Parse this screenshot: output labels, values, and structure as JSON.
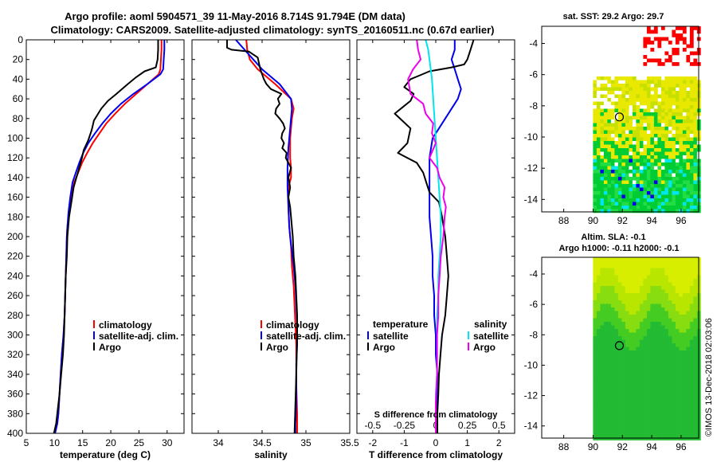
{
  "title": {
    "line1": "Argo profile: aoml 5904571_39 11-May-2016 8.714S 91.794E (DM data)",
    "line2": "Climatology: CARS2009. Satellite-adjusted climatology: synTS_20160511.nc (0.67d earlier)"
  },
  "credit": "©IMOS 13-Dec-2018 02:03:06",
  "colors": {
    "climatology": "#ff0000",
    "satellite": "#0000ee",
    "argo": "#000000",
    "sat_salinity": "#00e5ee",
    "argo_salinity": "#ee00ee"
  },
  "depth_ticks": [
    "0",
    "20",
    "40",
    "60",
    "80",
    "100",
    "120",
    "140",
    "160",
    "180",
    "200",
    "220",
    "240",
    "260",
    "280",
    "300",
    "320",
    "340",
    "360",
    "380",
    "400"
  ],
  "chart_data": [
    {
      "type": "line",
      "name": "temperature-panel",
      "xlabel": "temperature (deg C)",
      "ylabel": "depth",
      "xlim": [
        5,
        33
      ],
      "ylim": [
        400,
        0
      ],
      "xticks": [
        5,
        10,
        15,
        20,
        25,
        30
      ],
      "xtick_labels": [
        "5",
        "10",
        "15",
        "20",
        "25",
        "30"
      ],
      "legend": {
        "position": "lower-right",
        "entries": [
          "climatology",
          "satellite-adj. clim.",
          "Argo"
        ]
      },
      "series": [
        {
          "name": "climatology",
          "color": "#ff0000",
          "x": [
            29.0,
            29.0,
            28.9,
            28.8,
            28.5,
            26.5,
            24.5,
            22.5,
            20.8,
            19.2,
            18.0,
            16.8,
            15.8,
            14.9,
            14.2,
            13.5,
            13.0,
            12.6,
            12.3,
            12.2,
            12.1,
            12.0,
            11.9,
            11.8,
            11.6,
            11.3,
            11.1,
            10.9,
            10.7,
            10.5,
            10.3,
            10.1
          ],
          "depth": [
            0,
            10,
            20,
            30,
            35,
            45,
            55,
            65,
            75,
            85,
            95,
            105,
            115,
            125,
            135,
            145,
            160,
            175,
            190,
            200,
            220,
            240,
            260,
            280,
            300,
            320,
            340,
            360,
            380,
            390,
            395,
            400
          ]
        },
        {
          "name": "satellite",
          "color": "#0000ee",
          "x": [
            29.5,
            29.5,
            29.4,
            29.3,
            28.8,
            26.5,
            24.0,
            21.8,
            20.0,
            18.5,
            17.2,
            16.0,
            15.1,
            14.4,
            13.8,
            13.2,
            12.8,
            12.5,
            12.3,
            12.2,
            12.1,
            12.0,
            11.9,
            11.8,
            11.6,
            11.3,
            11.1,
            10.9,
            10.7,
            10.5,
            10.3,
            10.1
          ],
          "depth": [
            0,
            10,
            20,
            30,
            35,
            45,
            55,
            65,
            75,
            85,
            95,
            105,
            115,
            125,
            135,
            145,
            160,
            175,
            190,
            200,
            220,
            240,
            260,
            280,
            300,
            320,
            340,
            360,
            380,
            390,
            395,
            400
          ]
        },
        {
          "name": "Argo",
          "color": "#000000",
          "x": [
            28.4,
            28.4,
            28.3,
            28.0,
            26.0,
            24.5,
            23.0,
            21.0,
            19.5,
            18.3,
            17.0,
            16.6,
            16.0,
            15.2,
            14.8,
            14.3,
            13.9,
            13.4,
            13.0,
            12.6,
            12.3,
            12.2,
            12.0,
            11.9,
            11.8,
            11.7,
            11.5,
            11.2,
            10.9,
            10.6,
            10.3,
            10.1,
            9.9
          ],
          "depth": [
            0,
            10,
            20,
            28,
            32,
            38,
            45,
            55,
            62,
            70,
            82,
            92,
            102,
            112,
            122,
            132,
            140,
            150,
            165,
            180,
            200,
            220,
            240,
            260,
            280,
            300,
            320,
            340,
            360,
            375,
            390,
            395,
            400
          ]
        }
      ]
    },
    {
      "type": "line",
      "name": "salinity-panel",
      "xlabel": "salinity",
      "ylabel": "depth",
      "xlim": [
        33.7,
        35.5
      ],
      "ylim": [
        400,
        0
      ],
      "xticks": [
        34,
        34.5,
        35,
        35.5
      ],
      "xtick_labels": [
        "34",
        "34.5",
        "35",
        "35.5"
      ],
      "legend": {
        "position": "lower-right",
        "entries": [
          "climatology",
          "satellite-adj. clim.",
          "Argo"
        ]
      },
      "series": [
        {
          "name": "climatology",
          "color": "#ff0000",
          "x": [
            34.32,
            34.33,
            34.36,
            34.45,
            34.65,
            34.83,
            34.86,
            34.84,
            34.82,
            34.82,
            34.83,
            34.83,
            34.8,
            34.8,
            34.8,
            34.81,
            34.83,
            34.84,
            34.86,
            34.87,
            34.88,
            34.89,
            34.89,
            34.89,
            34.9,
            34.9
          ],
          "depth": [
            0,
            10,
            20,
            30,
            45,
            60,
            70,
            80,
            100,
            120,
            130,
            140,
            150,
            160,
            170,
            190,
            210,
            230,
            250,
            270,
            290,
            310,
            330,
            350,
            380,
            400
          ]
        },
        {
          "name": "satellite",
          "color": "#0000ee",
          "x": [
            34.2,
            34.3,
            34.4,
            34.5,
            34.7,
            34.83,
            34.84,
            34.82,
            34.8,
            34.79,
            34.79,
            34.8,
            34.81,
            34.82,
            34.84,
            34.86,
            34.88,
            34.89,
            34.9,
            34.9,
            34.89,
            34.89,
            34.89,
            34.88,
            34.88
          ],
          "depth": [
            0,
            10,
            20,
            30,
            45,
            60,
            70,
            90,
            110,
            130,
            150,
            170,
            190,
            200,
            215,
            230,
            250,
            270,
            290,
            310,
            330,
            350,
            370,
            390,
            400
          ]
        },
        {
          "name": "Argo",
          "color": "#000000",
          "x": [
            34.1,
            34.1,
            34.15,
            34.35,
            34.45,
            34.48,
            34.52,
            34.55,
            34.6,
            34.72,
            34.68,
            34.7,
            34.66,
            34.65,
            34.7,
            34.74,
            34.76,
            34.73,
            34.72,
            34.75,
            34.73,
            34.78,
            34.77,
            34.8,
            34.83,
            34.8,
            34.82,
            34.8,
            34.82,
            34.83,
            34.85,
            34.86,
            34.88,
            34.89,
            34.9,
            34.9,
            34.89,
            34.88,
            34.87
          ],
          "depth": [
            0,
            8,
            10,
            12,
            18,
            30,
            40,
            45,
            50,
            55,
            60,
            65,
            70,
            75,
            80,
            85,
            90,
            95,
            100,
            105,
            110,
            115,
            120,
            125,
            130,
            140,
            150,
            160,
            170,
            180,
            200,
            220,
            240,
            260,
            280,
            300,
            340,
            370,
            400
          ]
        }
      ]
    },
    {
      "type": "line",
      "name": "difference-panel",
      "xlabel": "T difference from climatology",
      "xlabel_top": "S difference from climatology",
      "ylabel": "depth",
      "xlim": [
        -2.5,
        2.5
      ],
      "ylim": [
        400,
        0
      ],
      "xticks": [
        -2,
        -1,
        0,
        1,
        2
      ],
      "xtick_labels": [
        "-2",
        "-1",
        "0",
        "1",
        "2"
      ],
      "s_xticks": [
        -0.5,
        -0.25,
        0,
        0.25,
        0.5
      ],
      "s_xtick_labels": [
        "-0.5",
        "-0.25",
        "0",
        "0.25",
        "0.5"
      ],
      "s_scale": 0.25,
      "legend": {
        "position": "lower",
        "temperature_label": "temperature",
        "salinity_label": "salinity",
        "entries": [
          "satellite",
          "Argo"
        ]
      },
      "series": [
        {
          "name": "temperature satellite",
          "color": "#0000ee",
          "axis": "T",
          "x": [
            0.6,
            0.6,
            0.5,
            0.6,
            0.7,
            0.8,
            0.7,
            0.5,
            0.3,
            0.1,
            -0.1,
            -0.2,
            -0.2,
            -0.2,
            -0.2,
            -0.15,
            -0.1,
            -0.1,
            -0.05,
            -0.05,
            0,
            0,
            0.05,
            0.05,
            0.05,
            0.05
          ],
          "depth": [
            0,
            10,
            20,
            30,
            40,
            50,
            60,
            70,
            80,
            90,
            100,
            120,
            140,
            160,
            180,
            200,
            220,
            240,
            260,
            280,
            300,
            320,
            340,
            360,
            380,
            400
          ]
        },
        {
          "name": "temperature Argo",
          "color": "#000000",
          "axis": "T",
          "x": [
            1.2,
            1.1,
            1.0,
            0.9,
            0.5,
            -0.2,
            -0.5,
            -0.8,
            -1.0,
            -0.7,
            -0.8,
            -1.3,
            -0.8,
            -0.9,
            -1.2,
            -0.6,
            -0.4,
            -0.3,
            -0.2,
            0.1,
            0.2,
            0.3,
            0.35,
            0.4,
            0.35,
            0.3,
            0.2,
            0.15,
            0.1,
            0.08,
            0.05,
            0.05
          ],
          "depth": [
            0,
            10,
            20,
            25,
            28,
            32,
            36,
            40,
            48,
            55,
            62,
            75,
            90,
            105,
            115,
            125,
            135,
            145,
            155,
            165,
            180,
            200,
            220,
            240,
            260,
            280,
            300,
            320,
            340,
            360,
            380,
            400
          ]
        },
        {
          "name": "salinity satellite",
          "color": "#00e5ee",
          "axis": "S",
          "x": [
            -0.08,
            -0.06,
            -0.05,
            -0.04,
            -0.03,
            -0.02,
            -0.01,
            0,
            0.01,
            0.02,
            0.03,
            0.04,
            0.04,
            0.03,
            0.02,
            0.02,
            0.01,
            0.01,
            0.01,
            0.01,
            0,
            0,
            0
          ],
          "depth": [
            0,
            10,
            20,
            30,
            40,
            60,
            80,
            100,
            120,
            140,
            160,
            180,
            200,
            220,
            240,
            260,
            280,
            300,
            320,
            340,
            360,
            380,
            400
          ]
        },
        {
          "name": "salinity Argo",
          "color": "#ee00ee",
          "axis": "S",
          "x": [
            -0.15,
            -0.14,
            -0.12,
            -0.18,
            -0.22,
            -0.2,
            -0.1,
            -0.08,
            -0.02,
            -0.03,
            0,
            -0.05,
            0.01,
            0.03,
            0.07,
            0.06,
            0.08,
            0.07,
            0.06,
            0.04,
            0.03,
            0.02,
            0.02,
            0.01,
            0.01,
            0,
            0
          ],
          "depth": [
            0,
            10,
            20,
            30,
            40,
            55,
            65,
            75,
            85,
            95,
            105,
            120,
            130,
            140,
            150,
            160,
            170,
            180,
            200,
            220,
            240,
            260,
            280,
            300,
            340,
            370,
            400
          ]
        }
      ]
    },
    {
      "type": "heatmap",
      "name": "sst-map",
      "title": "sat. SST: 29.2 Argo: 29.7",
      "xlabel": "longitude",
      "ylabel": "latitude",
      "xlim": [
        86.5,
        97.2
      ],
      "ylim": [
        -14.8,
        -2.9
      ],
      "xticks": [
        88,
        90,
        92,
        94,
        96
      ],
      "xtick_labels": [
        "88",
        "90",
        "92",
        "94",
        "96"
      ],
      "yticks": [
        -4,
        -6,
        -8,
        -10,
        -12,
        -14
      ],
      "ytick_labels": [
        "-4",
        "-6",
        "-8",
        "-10",
        "-12",
        "-14"
      ],
      "marker": {
        "lon": 91.794,
        "lat": -8.714
      }
    },
    {
      "type": "heatmap",
      "name": "sla-map",
      "title": "Altim. SLA: -0.1",
      "subtitle": "Argo h1000: -0.11 h2000: -0.1",
      "xlabel": "longitude",
      "ylabel": "latitude",
      "xlim": [
        86.5,
        97.2
      ],
      "ylim": [
        -14.8,
        -2.9
      ],
      "xticks": [
        88,
        90,
        92,
        94,
        96
      ],
      "xtick_labels": [
        "88",
        "90",
        "92",
        "94",
        "96"
      ],
      "yticks": [
        -4,
        -6,
        -8,
        -10,
        -12,
        -14
      ],
      "ytick_labels": [
        "-4",
        "-6",
        "-8",
        "-10",
        "-12",
        "-14"
      ],
      "marker": {
        "lon": 91.794,
        "lat": -8.714
      }
    }
  ]
}
